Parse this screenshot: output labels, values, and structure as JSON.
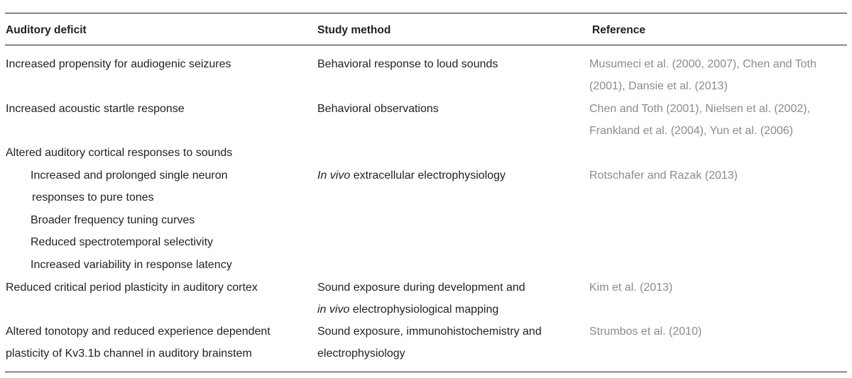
{
  "table": {
    "headers": {
      "deficit": "Auditory deficit",
      "method": "Study method",
      "reference": "Reference"
    },
    "rows": [
      {
        "deficit": [
          "Increased propensity for audiogenic seizures"
        ],
        "method": [
          "Behavioral response to loud sounds"
        ],
        "reference": [
          "Musumeci et al. (2000, 2007), Chen and Toth",
          "(2001), Dansie et al. (2013)"
        ]
      },
      {
        "deficit": [
          "Increased acoustic startle response"
        ],
        "method": [
          "Behavioral observations"
        ],
        "reference": [
          "Chen and Toth (2001), Nielsen et al. (2002),",
          "Frankland et al. (2004), Yun et al. (2006)"
        ]
      },
      {
        "deficit": [
          "Altered auditory cortical responses to sounds"
        ],
        "subitems": [
          [
            "Increased and prolonged single neuron",
            "responses to pure tones"
          ],
          [
            "Broader frequency tuning curves"
          ],
          [
            "Reduced spectrotemporal selectivity"
          ],
          [
            "Increased variability in response latency"
          ]
        ],
        "method_italic": "In vivo",
        "method_rest": " extracellular electrophysiology",
        "reference": [
          "Rotschafer and Razak (2013)"
        ]
      },
      {
        "deficit": [
          "Reduced critical period plasticity in auditory cortex"
        ],
        "method_line1": "Sound exposure during development and",
        "method_line2_italic": "in vivo",
        "method_line2_rest": " electrophysiological mapping",
        "reference": [
          "Kim et al. (2013)"
        ]
      },
      {
        "deficit": [
          "Altered tonotopy and reduced experience dependent",
          "plasticity of Kv3.1b channel in auditory brainstem"
        ],
        "method": [
          "Sound exposure, immunohistochemistry and",
          "electrophysiology"
        ],
        "reference": [
          "Strumbos et al. (2010)"
        ]
      }
    ]
  }
}
